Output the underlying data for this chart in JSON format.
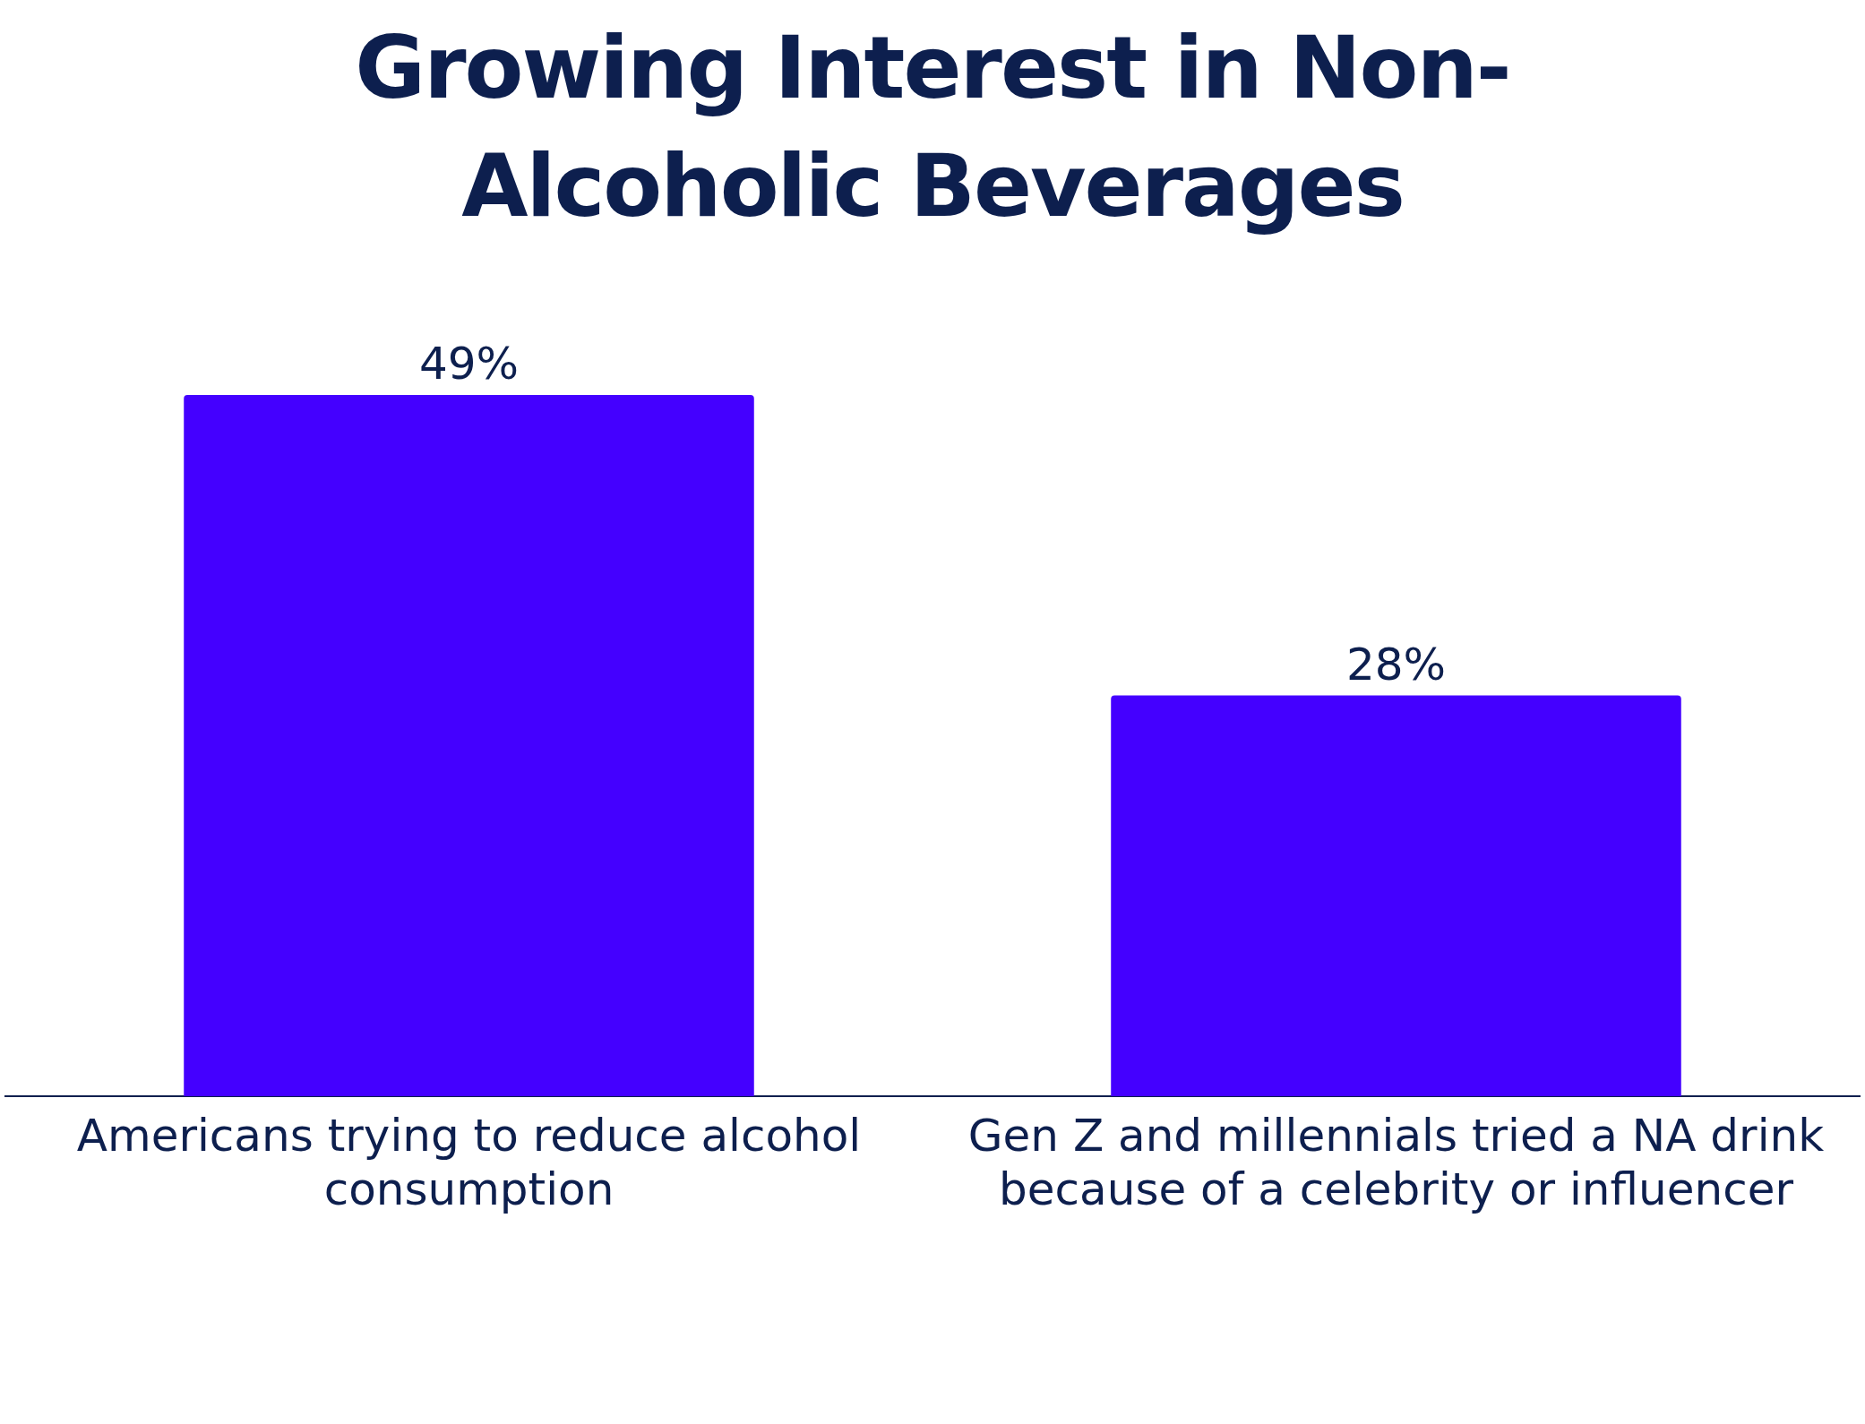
{
  "chart_data": {
    "type": "bar",
    "title": "Growing Interest in Non-Alcoholic Beverages",
    "categories": [
      "Americans trying to reduce alcohol consumption",
      "Gen Z and millennials tried a NA drink because of a celebrity or influencer"
    ],
    "values": [
      49,
      28
    ],
    "color": "#4400ff",
    "value_labels": [
      "49%",
      "28%"
    ],
    "tick_labels": "x",
    "grid": false,
    "legend": false
  }
}
